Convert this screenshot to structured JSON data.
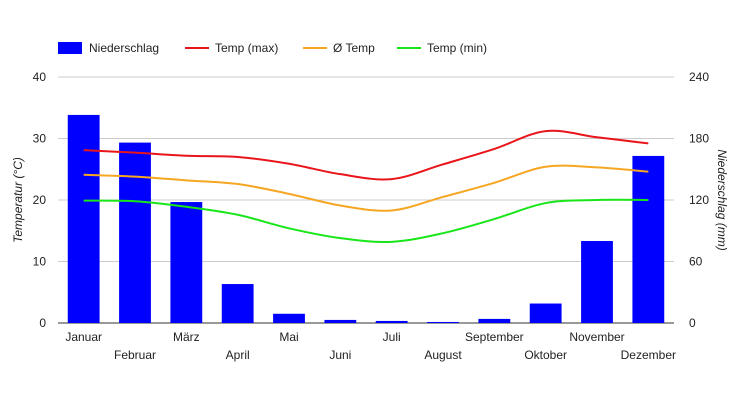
{
  "chart_data": {
    "type": "bar+line",
    "categories": [
      "Januar",
      "Februar",
      "März",
      "April",
      "Mai",
      "Juni",
      "Juli",
      "August",
      "September",
      "Oktober",
      "November",
      "Dezember"
    ],
    "legend_position": "top-left",
    "grid": true,
    "y_left": {
      "label": "Temperatur (°C)",
      "min": 0,
      "max": 40,
      "ticks": [
        0,
        10,
        20,
        30,
        40
      ]
    },
    "y_right": {
      "label": "Niederschlag (mm)",
      "min": 0,
      "max": 240,
      "ticks": [
        0,
        60,
        120,
        180,
        240
      ]
    },
    "bars": {
      "name": "Niederschlag",
      "axis": "right",
      "color": "#0000ff",
      "values": [
        203,
        176,
        118,
        38,
        9,
        3,
        2,
        1,
        4,
        19,
        80,
        163
      ]
    },
    "series": [
      {
        "name": "Temp (max)",
        "axis": "left",
        "color": "#e8151b",
        "values": [
          28.1,
          27.7,
          27.2,
          27.0,
          25.9,
          24.2,
          23.4,
          25.8,
          28.3,
          31.2,
          30.2,
          29.2
        ]
      },
      {
        "name": "Ø Temp",
        "axis": "left",
        "color": "#f5a623",
        "values": [
          24.1,
          23.8,
          23.2,
          22.6,
          21.0,
          19.1,
          18.3,
          20.5,
          22.8,
          25.4,
          25.3,
          24.6
        ]
      },
      {
        "name": "Temp (min)",
        "axis": "left",
        "color": "#19e619",
        "values": [
          19.9,
          19.8,
          18.9,
          17.6,
          15.4,
          13.8,
          13.2,
          14.6,
          16.9,
          19.5,
          20.0,
          20.0
        ]
      }
    ]
  }
}
